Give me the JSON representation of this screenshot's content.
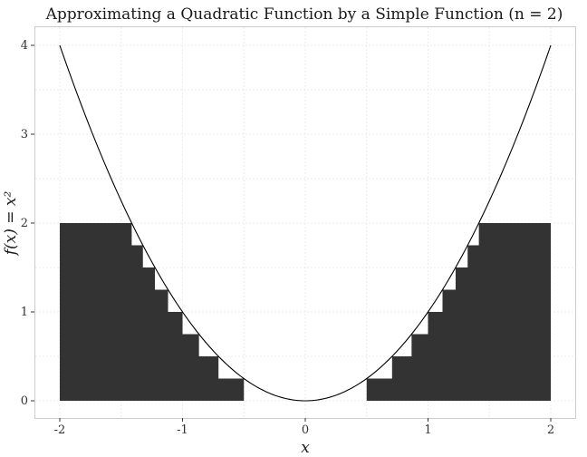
{
  "chart_data": {
    "type": "area",
    "title": "Approximating a Quadratic Function by a Simple Function (n = 2)",
    "xlabel": "x",
    "ylabel": "f(x) = x²",
    "xlim": [
      -2,
      2
    ],
    "ylim": [
      0,
      4
    ],
    "x_ticks": [
      -2,
      -1,
      0,
      1,
      2
    ],
    "y_ticks": [
      0,
      1,
      2,
      3,
      4
    ],
    "x_tick_labels": [
      "-2",
      "-1",
      "0",
      "1",
      "2"
    ],
    "y_tick_labels": [
      "0",
      "1",
      "2",
      "3",
      "4"
    ],
    "grid": true,
    "legend": "none",
    "series": [
      {
        "type": "line",
        "function": "x^2",
        "x": [
          -2,
          -1.75,
          -1.5,
          -1.25,
          -1,
          -0.75,
          -0.5,
          -0.25,
          0,
          0.25,
          0.5,
          0.75,
          1,
          1.25,
          1.5,
          1.75,
          2
        ],
        "y": [
          4,
          3.0625,
          2.25,
          1.5625,
          1,
          0.5625,
          0.25,
          0.0625,
          0,
          0.0625,
          0.25,
          0.5625,
          1,
          1.5625,
          2.25,
          3.0625,
          4
        ],
        "color": "#000000"
      },
      {
        "type": "step-area",
        "levels": [
          0,
          0.25,
          0.5,
          0.75,
          1,
          1.25,
          1.5,
          1.75,
          2
        ],
        "cap": 2,
        "color": "#333333"
      }
    ]
  }
}
